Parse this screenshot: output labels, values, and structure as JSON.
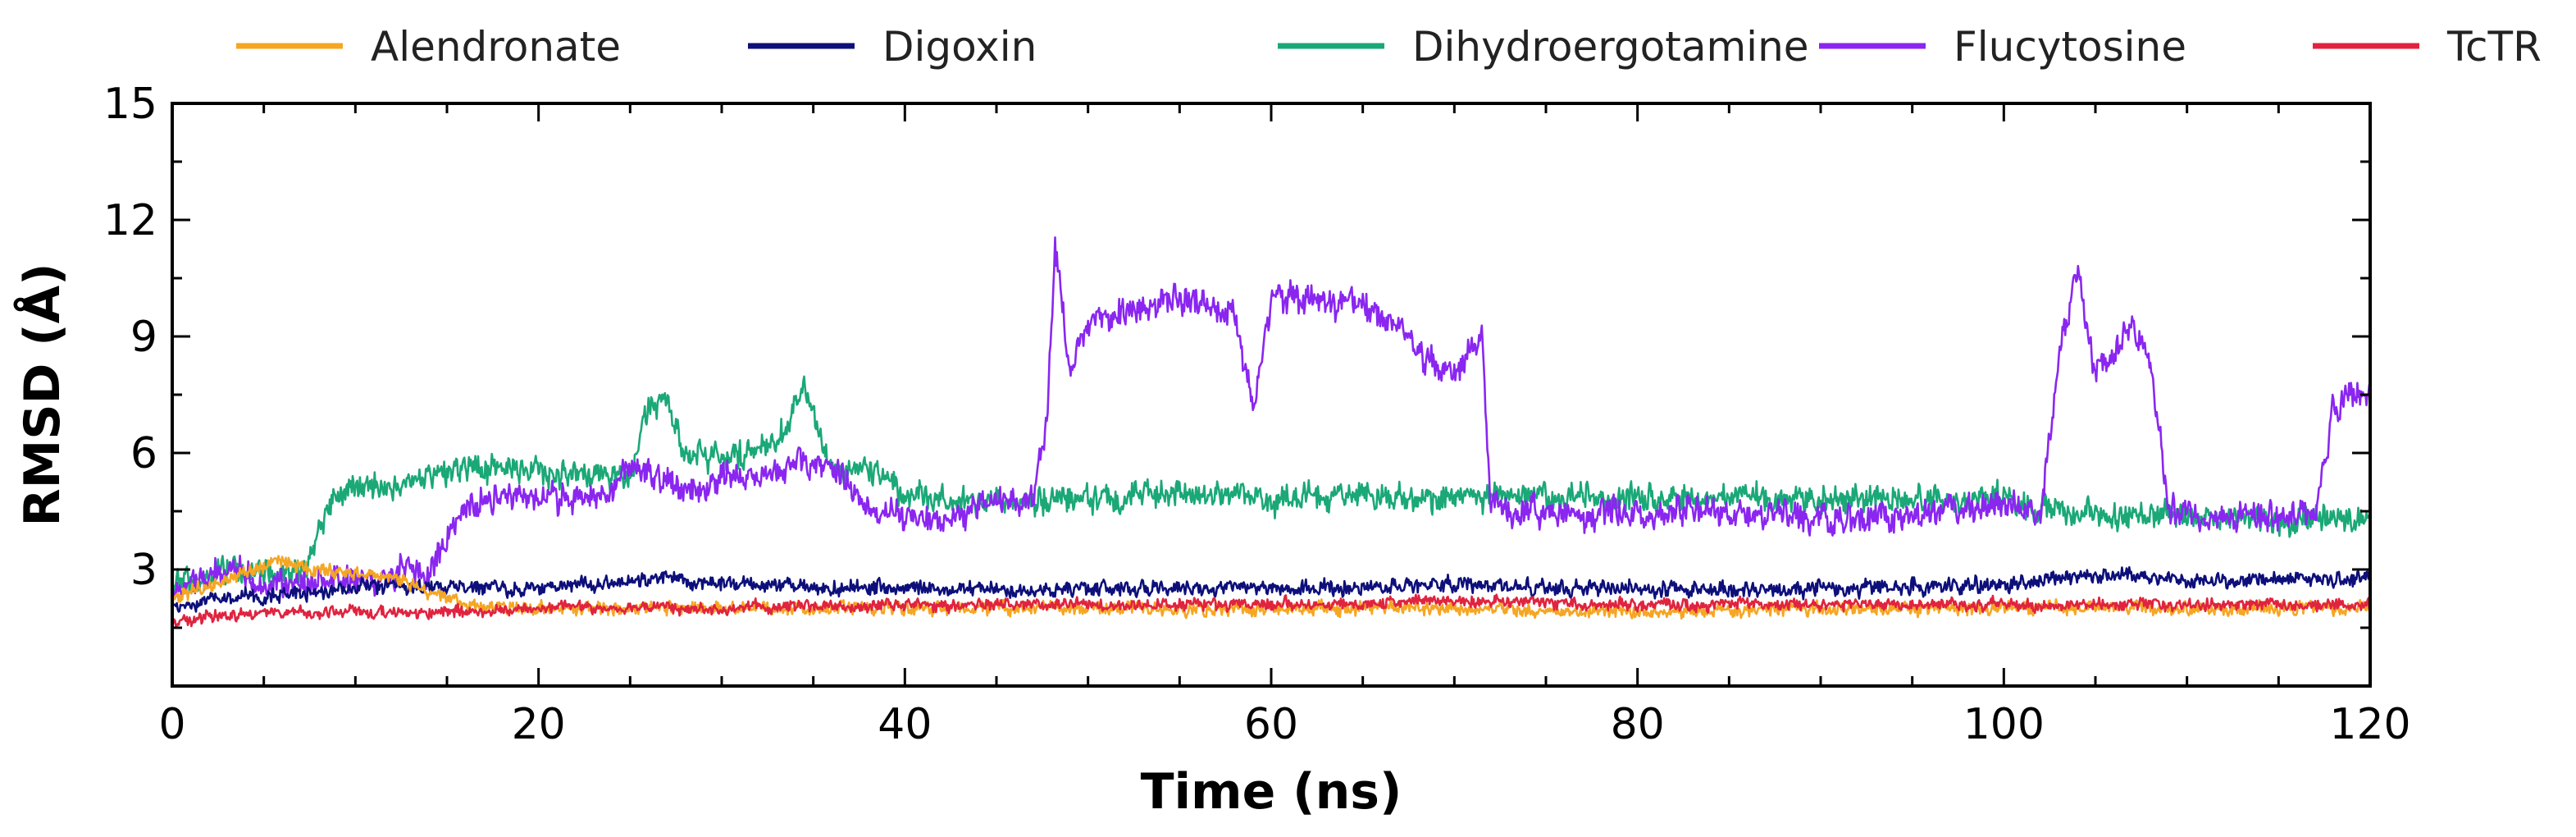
{
  "chart_data": {
    "type": "line",
    "title": "",
    "xlabel": "Time (ns)",
    "ylabel": "RMSD (Å)",
    "xlim": [
      0,
      120
    ],
    "ylim": [
      0,
      15
    ],
    "xticks": [
      0,
      20,
      40,
      60,
      80,
      100,
      120
    ],
    "xtick_labels": [
      "0",
      "20",
      "40",
      "60",
      "80",
      "100",
      "120"
    ],
    "yticks": [
      3,
      6,
      9,
      12,
      15
    ],
    "ytick_labels": [
      "3",
      "6",
      "9",
      "12",
      "15"
    ],
    "grid": false,
    "legend_position": "top",
    "series": [
      {
        "name": "Alendronate",
        "color": "#f5a623",
        "noise": 0.25,
        "x": [
          0,
          2,
          4,
          6,
          8,
          10,
          12,
          14,
          16,
          20,
          30,
          40,
          50,
          60,
          70,
          80,
          90,
          100,
          110,
          120
        ],
        "values": [
          2.2,
          2.6,
          2.9,
          3.2,
          3.0,
          2.9,
          2.8,
          2.4,
          2.1,
          2.0,
          2.0,
          2.0,
          2.0,
          2.0,
          2.0,
          1.9,
          2.0,
          2.0,
          2.0,
          2.0
        ]
      },
      {
        "name": "Digoxin",
        "color": "#0d0f7a",
        "noise": 0.28,
        "x": [
          0,
          3,
          8,
          12,
          16,
          20,
          27,
          30,
          40,
          50,
          60,
          70,
          80,
          90,
          100,
          106,
          110,
          120
        ],
        "values": [
          2.0,
          2.3,
          2.4,
          2.6,
          2.5,
          2.5,
          2.8,
          2.6,
          2.5,
          2.5,
          2.5,
          2.6,
          2.5,
          2.5,
          2.6,
          2.9,
          2.7,
          2.8
        ]
      },
      {
        "name": "Dihydroergotamine",
        "color": "#1aa877",
        "noise": 0.5,
        "x": [
          0,
          3,
          5,
          7,
          8,
          9,
          12,
          16,
          20,
          25,
          26,
          27,
          28,
          30,
          33,
          34.5,
          36,
          38,
          40,
          45,
          50,
          55,
          60,
          65,
          70,
          75,
          80,
          85,
          90,
          95,
          100,
          104,
          110,
          115,
          120
        ],
        "values": [
          2.6,
          3.0,
          3.0,
          2.9,
          4.0,
          5.0,
          5.1,
          5.6,
          5.5,
          5.4,
          7.2,
          7.4,
          6.0,
          5.8,
          6.2,
          7.8,
          5.6,
          5.6,
          4.9,
          4.7,
          4.8,
          5.0,
          4.8,
          4.9,
          4.9,
          4.9,
          4.8,
          4.9,
          4.8,
          4.8,
          4.8,
          4.4,
          4.4,
          4.3,
          4.3
        ]
      },
      {
        "name": "Flucytosine",
        "color": "#8a26f0",
        "noise": 0.55,
        "x": [
          0,
          3,
          5,
          8,
          12,
          13,
          14,
          15,
          16,
          18,
          20,
          24,
          25,
          28,
          30,
          33,
          35,
          36,
          38,
          40,
          42,
          45,
          47,
          47.8,
          48.2,
          49,
          50,
          55,
          58,
          59,
          60,
          65,
          67,
          68,
          70,
          71.5,
          72,
          75,
          80,
          85,
          90,
          95,
          100,
          101,
          102,
          103,
          104,
          105,
          106,
          107,
          108,
          109,
          110,
          115,
          117,
          118,
          120
        ],
        "values": [
          2.4,
          3.0,
          2.6,
          2.7,
          2.8,
          3.0,
          2.7,
          4.0,
          4.6,
          4.9,
          4.8,
          5.0,
          5.8,
          5.0,
          5.3,
          5.5,
          5.9,
          5.6,
          4.6,
          4.4,
          4.3,
          4.8,
          4.9,
          7.0,
          11.4,
          8.0,
          9.4,
          10.0,
          9.6,
          7.0,
          10.0,
          9.8,
          9.4,
          8.6,
          8.0,
          9.0,
          4.6,
          4.4,
          4.5,
          4.5,
          4.3,
          4.4,
          4.7,
          4.6,
          4.4,
          8.4,
          10.8,
          8.0,
          8.6,
          9.3,
          8.4,
          4.5,
          4.4,
          4.4,
          4.4,
          7.2,
          7.6
        ]
      },
      {
        "name": "TcTR",
        "color": "#e0233f",
        "noise": 0.22,
        "x": [
          0,
          2,
          5,
          10,
          15,
          20,
          30,
          40,
          50,
          60,
          70,
          80,
          90,
          100,
          110,
          120
        ],
        "values": [
          1.6,
          1.8,
          1.9,
          1.9,
          1.9,
          2.0,
          2.0,
          2.1,
          2.1,
          2.1,
          2.2,
          2.1,
          2.1,
          2.1,
          2.1,
          2.1
        ]
      }
    ]
  }
}
